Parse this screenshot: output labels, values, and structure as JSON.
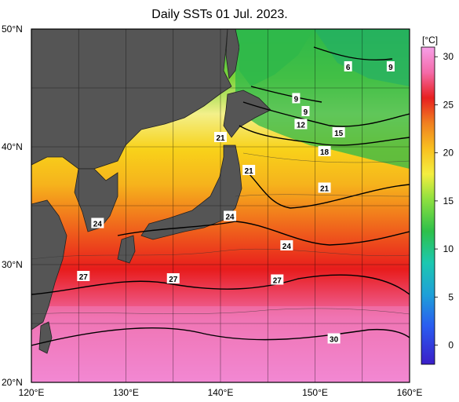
{
  "title": "Daily SSTs 01 Jul. 2023.",
  "map": {
    "lat_labels": [
      "50°N",
      "40°N",
      "30°N",
      "20°N"
    ],
    "lon_labels": [
      "120°E",
      "130°E",
      "140°E",
      "150°E",
      "160°E"
    ],
    "extent": {
      "lon": [
        120,
        160
      ],
      "lat": [
        20,
        50
      ]
    },
    "land_color": "#555555"
  },
  "colorbar": {
    "unit": "[°C]",
    "ticks": [
      "30",
      "25",
      "20",
      "15",
      "10",
      "5",
      "0"
    ],
    "range": [
      -2,
      31
    ]
  },
  "contour_labels": [
    {
      "text": "6",
      "lon": 153.5,
      "lat": 46.8
    },
    {
      "text": "9",
      "lon": 158.0,
      "lat": 46.8
    },
    {
      "text": "9",
      "lon": 148.0,
      "lat": 44.1
    },
    {
      "text": "9",
      "lon": 149.0,
      "lat": 43.0
    },
    {
      "text": "12",
      "lon": 148.5,
      "lat": 41.9
    },
    {
      "text": "15",
      "lon": 152.5,
      "lat": 41.2
    },
    {
      "text": "18",
      "lon": 151.0,
      "lat": 39.6
    },
    {
      "text": "21",
      "lon": 140.0,
      "lat": 40.8
    },
    {
      "text": "21",
      "lon": 143.0,
      "lat": 38.0
    },
    {
      "text": "21",
      "lon": 151.0,
      "lat": 36.5
    },
    {
      "text": "24",
      "lon": 127.0,
      "lat": 33.5
    },
    {
      "text": "24",
      "lon": 141.0,
      "lat": 34.1
    },
    {
      "text": "24",
      "lon": 147.0,
      "lat": 31.6
    },
    {
      "text": "27",
      "lon": 125.5,
      "lat": 29.0
    },
    {
      "text": "27",
      "lon": 135.0,
      "lat": 28.8
    },
    {
      "text": "27",
      "lon": 146.0,
      "lat": 28.7
    },
    {
      "text": "30",
      "lon": 152.0,
      "lat": 23.7
    }
  ]
}
